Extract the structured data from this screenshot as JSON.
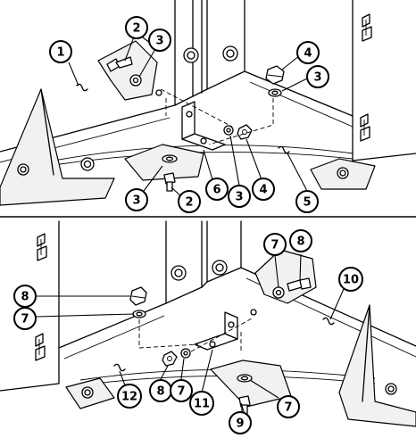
{
  "panels": [
    {
      "id": "top",
      "callouts": [
        {
          "label": "1"
        },
        {
          "label": "2"
        },
        {
          "label": "3"
        },
        {
          "label": "4"
        },
        {
          "label": "3"
        },
        {
          "label": "3"
        },
        {
          "label": "2"
        },
        {
          "label": "6"
        },
        {
          "label": "3"
        },
        {
          "label": "4"
        },
        {
          "label": "5"
        }
      ]
    },
    {
      "id": "bottom",
      "callouts": [
        {
          "label": "7"
        },
        {
          "label": "8"
        },
        {
          "label": "10"
        },
        {
          "label": "8"
        },
        {
          "label": "7"
        },
        {
          "label": "12"
        },
        {
          "label": "8"
        },
        {
          "label": "7"
        },
        {
          "label": "11"
        },
        {
          "label": "7"
        },
        {
          "label": "9"
        }
      ]
    }
  ]
}
